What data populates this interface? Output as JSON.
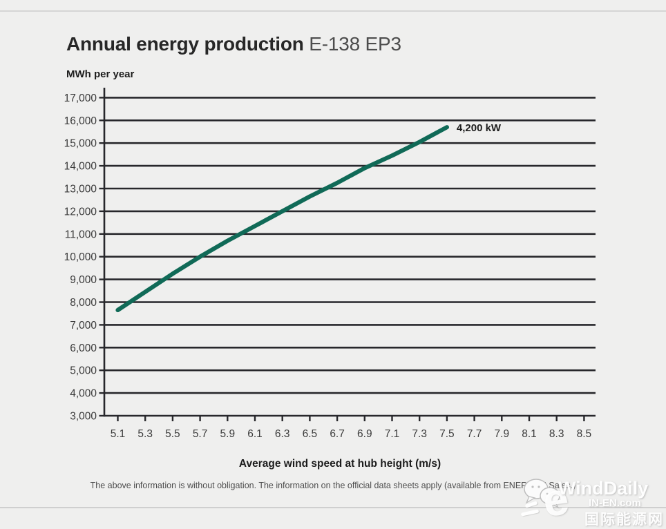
{
  "header": {
    "title": "Annual energy production",
    "model": "E-138 EP3",
    "y_unit_label": "MWh per year"
  },
  "chart_data": {
    "type": "line",
    "title": "Annual energy production E-138 EP3",
    "ylabel": "MWh per year",
    "xlabel": "Average wind speed at hub height (m/s)",
    "xlim": [
      5.1,
      8.5
    ],
    "ylim": [
      3000,
      17000
    ],
    "grid": "horizontal",
    "legend_position": "none",
    "x_tick_step": 0.2,
    "x_tick_labels": [
      "5.1",
      "5.3",
      "5.5",
      "5.7",
      "5.9",
      "6.1",
      "6.3",
      "6.5",
      "6.7",
      "6.9",
      "7.1",
      "7.3",
      "7.5",
      "7.7",
      "7.9",
      "8.1",
      "8.3",
      "8.5"
    ],
    "y_tick_values": [
      3000,
      4000,
      5000,
      6000,
      7000,
      8000,
      9000,
      10000,
      11000,
      12000,
      13000,
      14000,
      15000,
      16000,
      17000
    ],
    "y_tick_labels": [
      "3,000",
      "4,000",
      "5,000",
      "6,000",
      "7,000",
      "8,000",
      "9,000",
      "10,000",
      "11,000",
      "12,000",
      "13,000",
      "14,000",
      "15,000",
      "16,000",
      "17,000"
    ],
    "series": [
      {
        "name": "4,200 kW",
        "x": [
          5.1,
          5.3,
          5.5,
          5.7,
          5.9,
          6.1,
          6.3,
          6.5,
          6.7,
          6.9,
          7.1,
          7.3,
          7.5
        ],
        "values": [
          7650,
          8450,
          9250,
          10000,
          10700,
          11350,
          12000,
          12650,
          13250,
          13900,
          14450,
          15050,
          15700
        ]
      }
    ],
    "annotation": {
      "text": "4,200 kW",
      "x": 7.5,
      "y": 15700
    },
    "colors": {
      "line": "#106a57",
      "grid": "#27272b",
      "tick_text": "#3a3a3a",
      "label_text": "#1c1c1c",
      "background": "#efefee"
    }
  },
  "footer": {
    "disclaimer": "The above information is without obligation. The information on the official data sheets apply (available from ENERCON Sales.)"
  },
  "watermark": {
    "brand": "WindDaily",
    "site": "IN-EN.com",
    "site_cn": "国际能源网"
  }
}
